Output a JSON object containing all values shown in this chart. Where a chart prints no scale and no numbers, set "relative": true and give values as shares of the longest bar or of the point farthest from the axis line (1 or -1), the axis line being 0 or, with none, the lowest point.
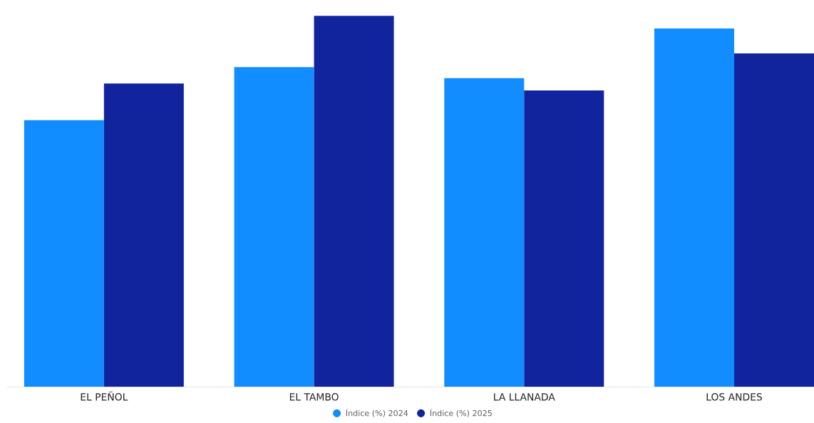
{
  "chart_data": {
    "type": "bar",
    "relative": true,
    "categories": [
      "EL PEÑOL",
      "EL TAMBO",
      "LA LLANADA",
      "LOS ANDES"
    ],
    "series": [
      {
        "name": "Índice (%) 2024",
        "color": "#118dff",
        "values": [
          0.719,
          0.862,
          0.832,
          0.966
        ]
      },
      {
        "name": "Índice (%) 2025",
        "color": "#12239e",
        "values": [
          0.818,
          1,
          0.799,
          0.899
        ]
      }
    ],
    "legend": "bottom"
  }
}
